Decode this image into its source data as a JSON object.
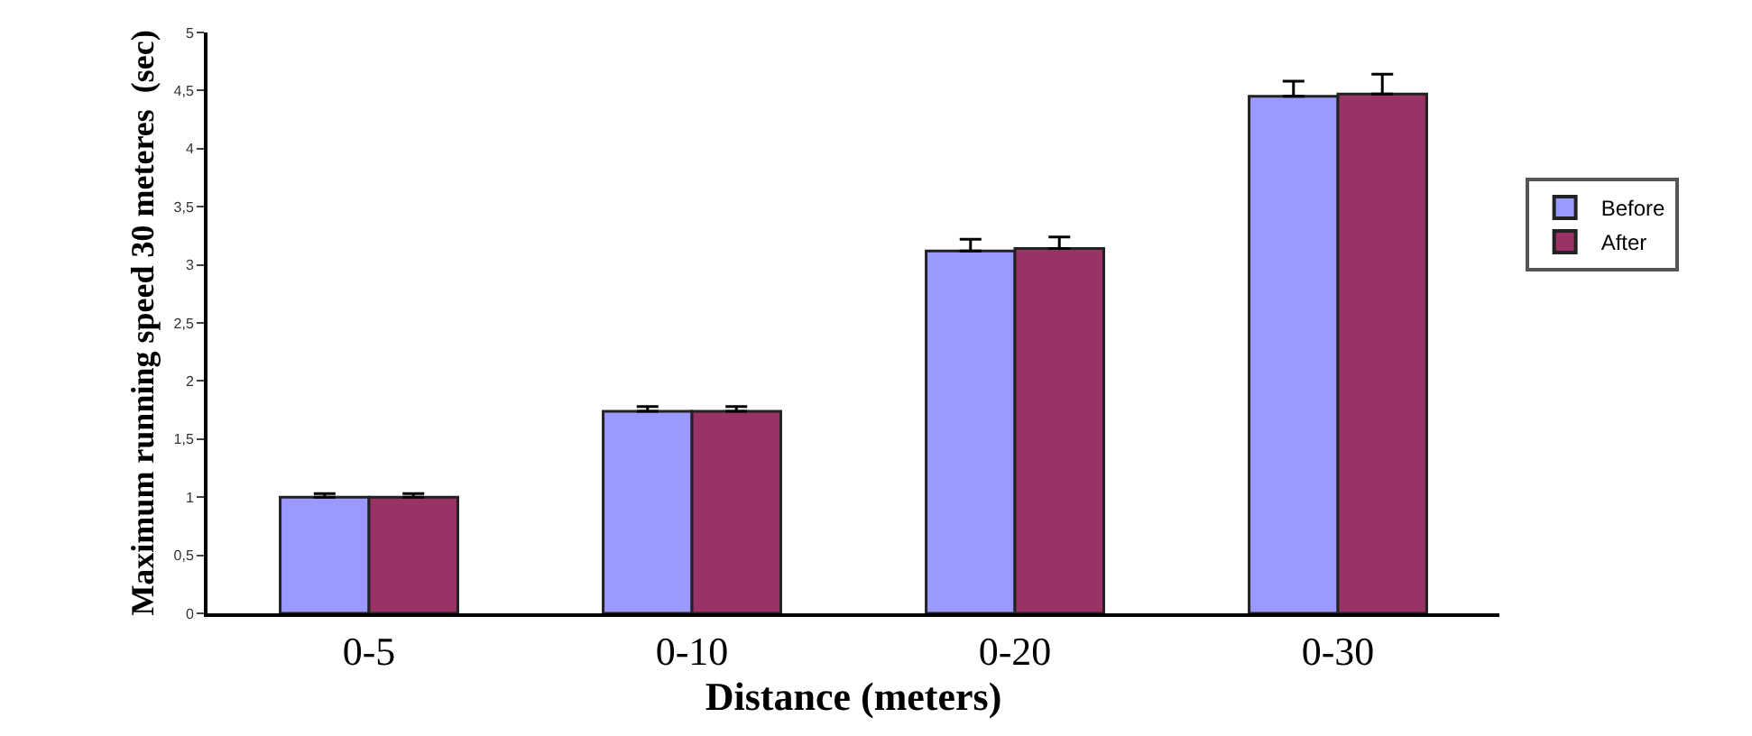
{
  "chart_data": {
    "type": "bar",
    "xlabel": "Distance (meters)",
    "ylabel": "Maximum running speed 30 meteres  (sec)",
    "categories": [
      "0-5",
      "0-10",
      "0-20",
      "0-30"
    ],
    "series": [
      {
        "name": "Before",
        "color": "#9999ff",
        "values": [
          1.0,
          1.74,
          3.12,
          4.45
        ],
        "errors": [
          0.03,
          0.04,
          0.1,
          0.13
        ]
      },
      {
        "name": "After",
        "color": "#993366",
        "values": [
          1.0,
          1.74,
          3.14,
          4.47
        ],
        "errors": [
          0.03,
          0.04,
          0.1,
          0.17
        ]
      }
    ],
    "ylim": [
      0,
      5
    ],
    "yticks": [
      0,
      {
        "value": 0.5,
        "label": "0,5"
      },
      1,
      {
        "value": 1.5,
        "label": "1,5"
      },
      2,
      {
        "value": 2.5,
        "label": "2,5"
      },
      3,
      {
        "value": 3.5,
        "label": "3,5"
      },
      4,
      {
        "value": 4.5,
        "label": "4,5"
      },
      5
    ],
    "legend": "right"
  }
}
